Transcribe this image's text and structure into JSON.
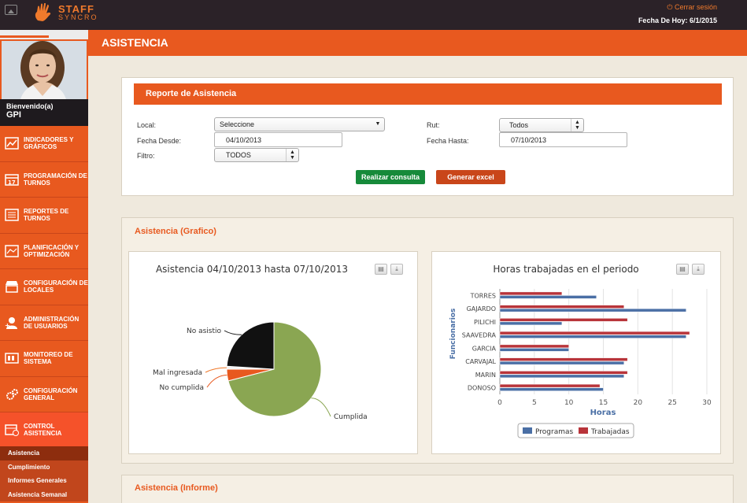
{
  "app": {
    "logo_line1": "STAFF",
    "logo_line2": "SYNCRO",
    "logout": "Cerrar sesión",
    "date": "Fecha De Hoy: 6/1/2015"
  },
  "page": {
    "title": "ASISTENCIA"
  },
  "user": {
    "welcome": "Bienvenido(a)",
    "name": "GPI"
  },
  "sidebar": {
    "items": [
      {
        "l1": "INDICADORES Y",
        "l2": "GRÁFICOS",
        "icon": "chart-icon"
      },
      {
        "l1": "PROGRAMACIÓN DE",
        "l2": "TURNOS",
        "icon": "calendar-icon"
      },
      {
        "l1": "REPORTES DE",
        "l2": "TURNOS",
        "icon": "report-icon"
      },
      {
        "l1": "PLANIFICACIÓN Y",
        "l2": "OPTIMIZACIÓN",
        "icon": "planning-icon"
      },
      {
        "l1": "CONFIGURACIÓN DE",
        "l2": "LOCALES",
        "icon": "store-icon"
      },
      {
        "l1": "ADMINISTRACIÓN",
        "l2": "DE USUARIOS",
        "icon": "add-user-icon"
      },
      {
        "l1": "MONITOREO DE",
        "l2": "SISTEMA",
        "icon": "monitor-icon"
      },
      {
        "l1": "CONFIGURACIÓN",
        "l2": "GENERAL",
        "icon": "gear-icon"
      },
      {
        "l1": "CONTROL",
        "l2": "ASISTENCIA",
        "icon": "attendance-icon"
      }
    ],
    "submenu": [
      "Asistencia",
      "Cumplimiento",
      "Informes Generales",
      "Asistencia Semanal"
    ]
  },
  "report": {
    "title": "Reporte de Asistencia",
    "local_label": "Local:",
    "local_value": "Seleccione",
    "rut_label": "Rut:",
    "rut_value": "Todos",
    "desde_label": "Fecha Desde:",
    "desde_value": "04/10/2013",
    "hasta_label": "Fecha Hasta:",
    "hasta_value": "07/10/2013",
    "filtro_label": "Filtro:",
    "filtro_value": "TODOS",
    "btn_consulta": "Realizar consulta",
    "btn_excel": "Generar excel"
  },
  "sections": {
    "grafico": "Asistencia (Grafico)",
    "informe": "Asistencia (Informe)"
  },
  "colors": {
    "accent": "#e8591f",
    "pie_green": "#8aa652",
    "pie_black": "#111111",
    "pie_orange": "#e8591f",
    "bar_blue": "#4a6fa5",
    "bar_red": "#b8343a"
  },
  "chart_data": [
    {
      "type": "pie",
      "title": "Asistencia 04/10/2013 hasta 07/10/2013",
      "slices": [
        {
          "label": "Cumplida",
          "value": 71
        },
        {
          "label": "No cumplida",
          "value": 4
        },
        {
          "label": "Mal ingresada",
          "value": 1
        },
        {
          "label": "No asistio",
          "value": 24
        }
      ]
    },
    {
      "type": "bar",
      "orientation": "horizontal",
      "title": "Horas trabajadas en el periodo",
      "xlabel": "Horas",
      "ylabel": "Funcionarios",
      "xlim": [
        0,
        30
      ],
      "xticks": [
        0,
        5,
        10,
        15,
        20,
        25,
        30
      ],
      "categories": [
        "TORRES",
        "GAJARDO",
        "PILICHI",
        "SAAVEDRA",
        "GARCIA",
        "CARVAJAL",
        "MARIN",
        "DONOSO"
      ],
      "series": [
        {
          "name": "Programas",
          "values": [
            14,
            27,
            9,
            27,
            10,
            18,
            18,
            15
          ]
        },
        {
          "name": "Trabajadas",
          "values": [
            9,
            18,
            18.5,
            27.5,
            10,
            18.5,
            18.5,
            14.5
          ]
        }
      ],
      "legend": "bottom"
    }
  ]
}
